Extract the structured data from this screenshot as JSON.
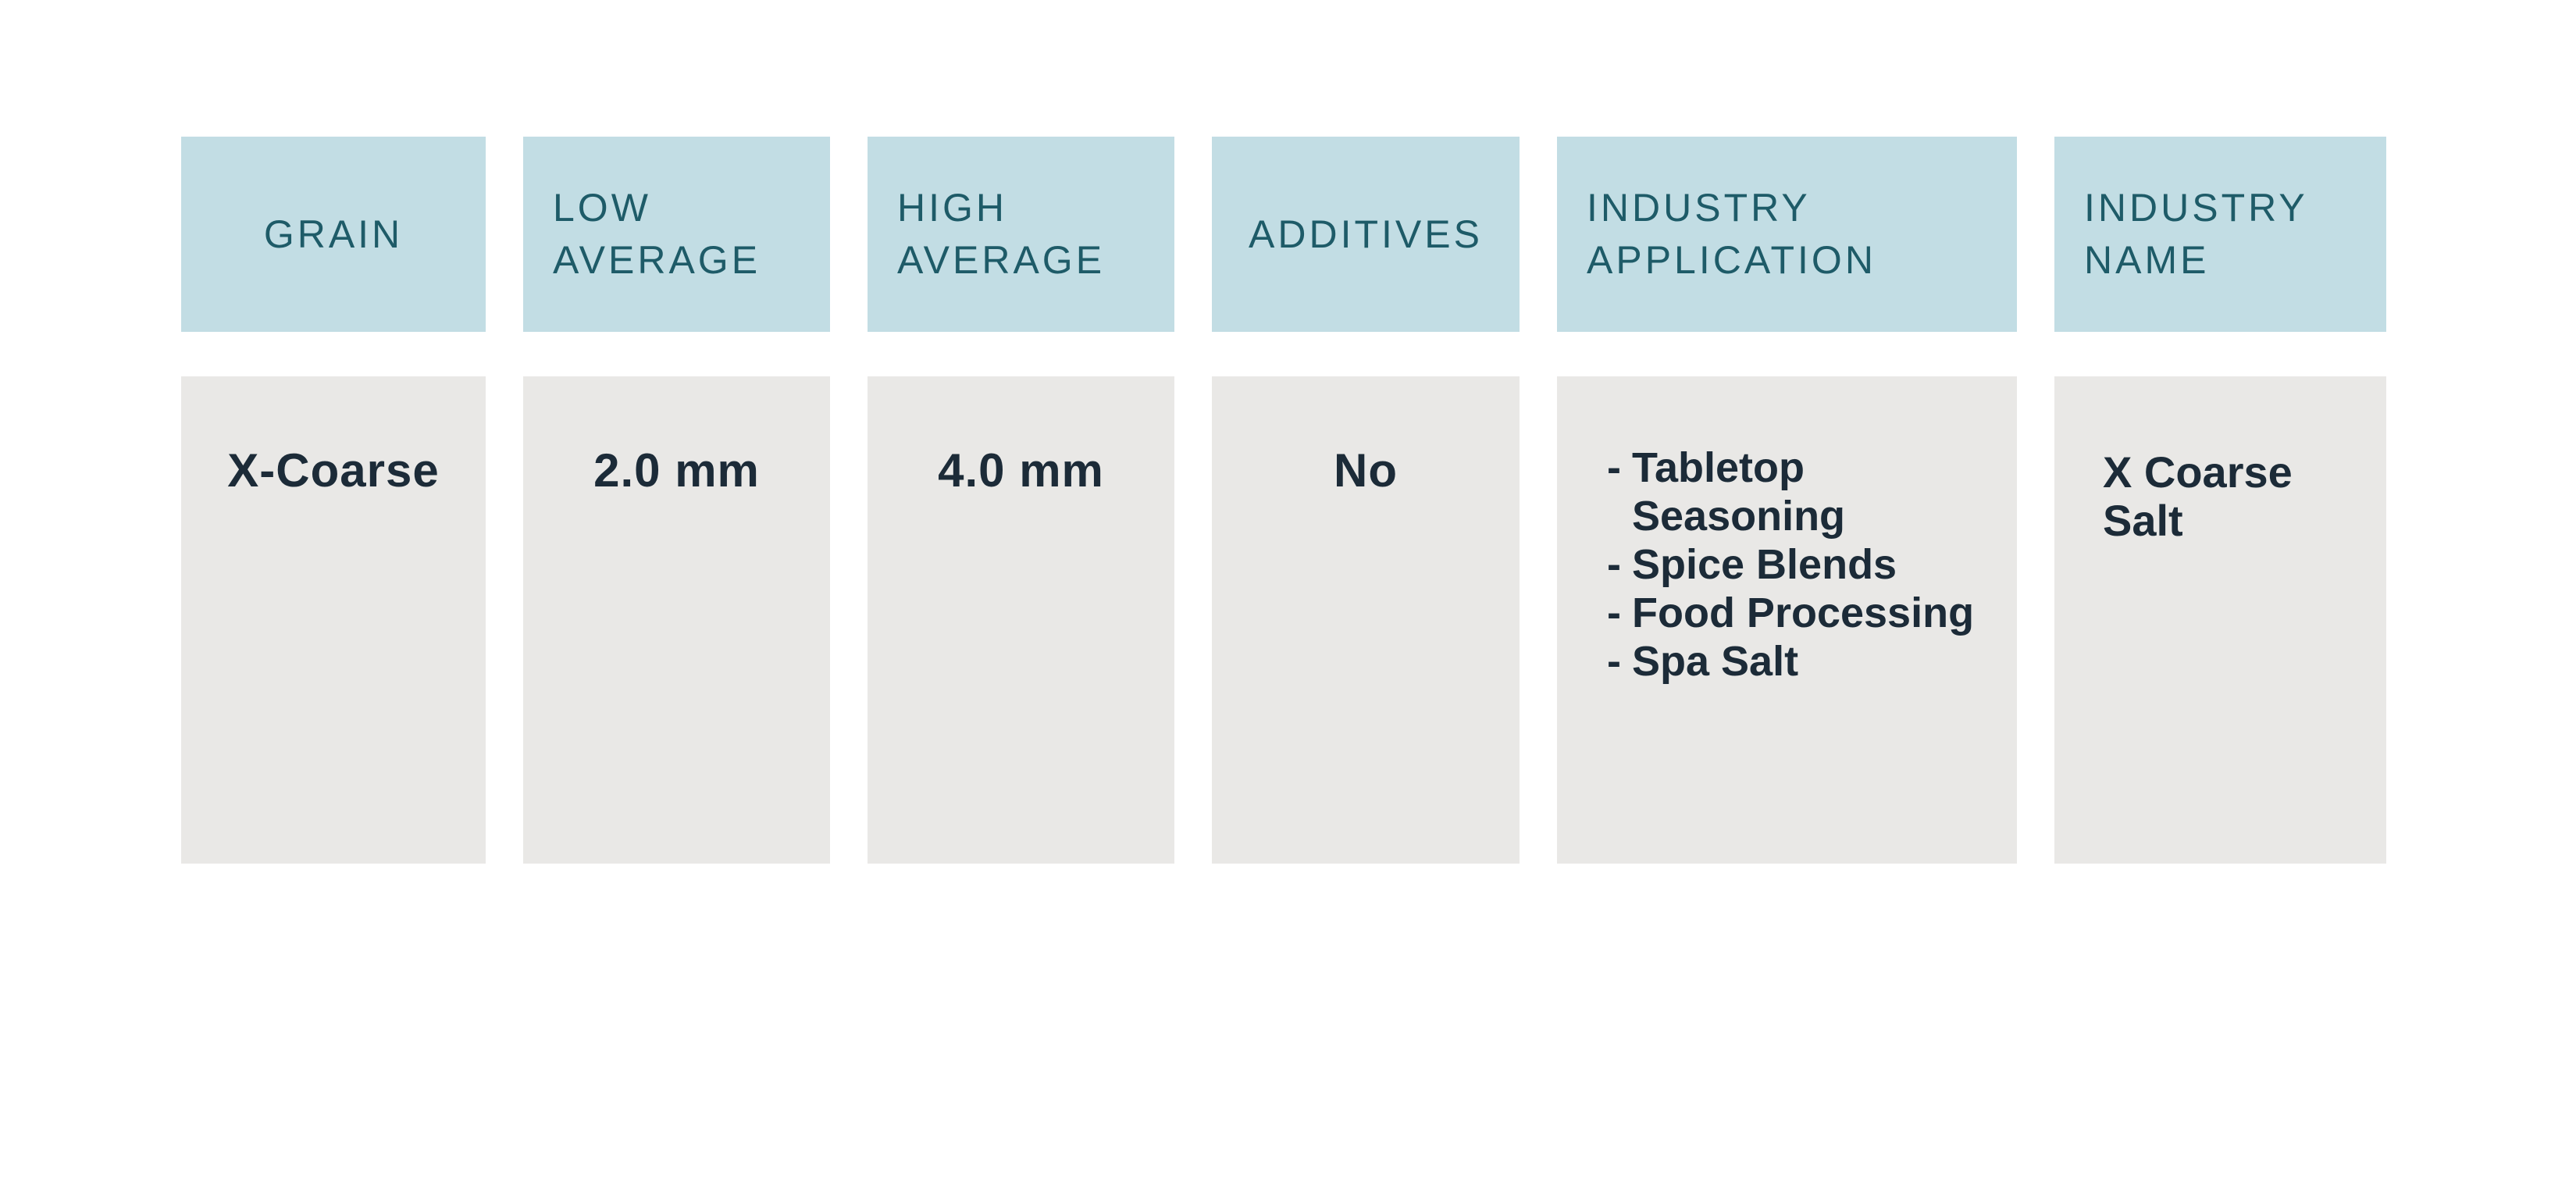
{
  "colors": {
    "header_bg": "#c2dde4",
    "header_text": "#1e5b68",
    "body_bg": "#e9e8e6",
    "body_text": "#1c2b38"
  },
  "table": {
    "headers": [
      {
        "id": "grain",
        "label": "GRAIN"
      },
      {
        "id": "low_average",
        "label": "LOW AVERAGE"
      },
      {
        "id": "high_average",
        "label": "HIGH AVERAGE"
      },
      {
        "id": "additives",
        "label": "ADDITIVES"
      },
      {
        "id": "industry_application",
        "label": "INDUSTRY APPLICATION"
      },
      {
        "id": "industry_name",
        "label": "INDUSTRY NAME"
      }
    ],
    "row": {
      "grain": "X-Coarse",
      "low_average": "2.0 mm",
      "high_average": "4.0 mm",
      "additives": "No",
      "industry_application": [
        {
          "bullet": "-",
          "label": "Tabletop Seasoning"
        },
        {
          "bullet": "-",
          "label": "Spice Blends"
        },
        {
          "bullet": "-",
          "label": "Food Processing"
        },
        {
          "bullet": "-",
          "label": "Spa Salt"
        }
      ],
      "industry_name": "X Coarse Salt"
    }
  }
}
